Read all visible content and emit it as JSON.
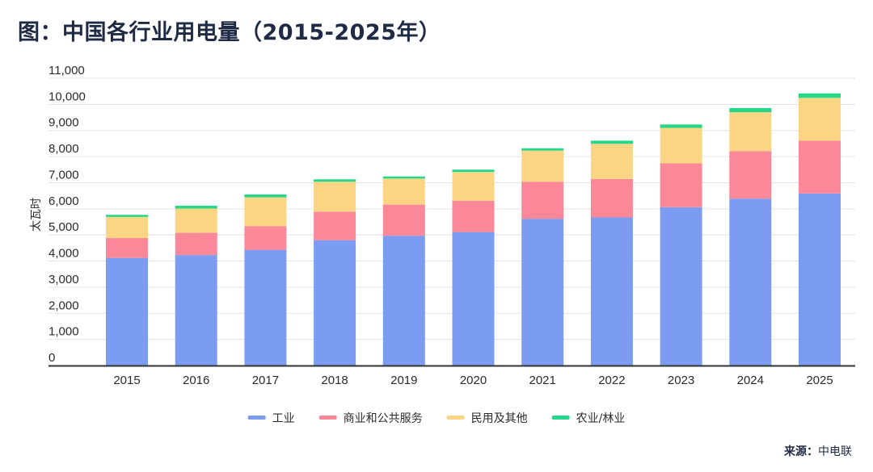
{
  "header": {
    "title": "图：中国各行业用电量（2015-2025年）"
  },
  "footer": {
    "source_label": "来源：",
    "source_name": "中电联"
  },
  "chart_data": {
    "type": "bar",
    "stacked": true,
    "title": "图：中国各行业用电量（2015-2025年）",
    "xlabel": "",
    "ylabel": "太瓦时",
    "ylim": [
      0,
      11000
    ],
    "yticks": [
      0,
      1000,
      2000,
      3000,
      4000,
      5000,
      6000,
      7000,
      8000,
      9000,
      10000,
      11000
    ],
    "ytick_labels": [
      "0",
      "1,000",
      "2,000",
      "3,000",
      "4,000",
      "5,000",
      "6,000",
      "7,000",
      "8,000",
      "9,000",
      "10,000",
      "11,000"
    ],
    "grid": true,
    "legend_position": "bottom-center",
    "categories": [
      "2015",
      "2016",
      "2017",
      "2018",
      "2019",
      "2020",
      "2021",
      "2022",
      "2023",
      "2024",
      "2025"
    ],
    "series": [
      {
        "name": "工业",
        "color": "#7b9cf0",
        "values": [
          4120,
          4230,
          4430,
          4800,
          4970,
          5110,
          5620,
          5670,
          6060,
          6390,
          6590
        ]
      },
      {
        "name": "商业和公共服务",
        "color": "#fb8899",
        "values": [
          760,
          850,
          900,
          1090,
          1190,
          1200,
          1420,
          1470,
          1680,
          1820,
          2020
        ]
      },
      {
        "name": "民用及其他",
        "color": "#fbd484",
        "values": [
          810,
          930,
          1110,
          1150,
          1000,
          1100,
          1190,
          1350,
          1360,
          1490,
          1640
        ]
      },
      {
        "name": "农业/林业",
        "color": "#24d789",
        "values": [
          80,
          110,
          110,
          90,
          80,
          90,
          90,
          120,
          130,
          160,
          170
        ]
      }
    ]
  }
}
